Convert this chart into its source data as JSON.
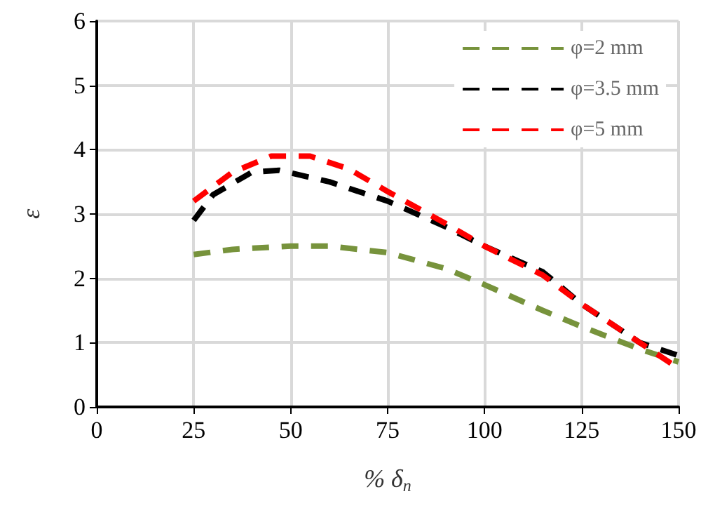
{
  "chart_data": {
    "type": "line",
    "xlabel": "% δ$_{n}$",
    "ylabel": "ε",
    "xlim": [
      0,
      150
    ],
    "xticks": [
      0,
      25,
      50,
      75,
      100,
      125,
      150
    ],
    "ylim": [
      0,
      6
    ],
    "yticks": [
      0,
      1,
      2,
      3,
      4,
      5,
      6
    ],
    "grid": true,
    "legend": "top right",
    "marker": "none",
    "line_style": "dashed",
    "series": [
      {
        "name": "φ=2 mm",
        "color": "#77933c",
        "x": [
          25,
          35,
          50,
          60,
          75,
          90,
          100,
          115,
          125,
          140,
          150
        ],
        "values": [
          2.37,
          2.45,
          2.5,
          2.5,
          2.4,
          2.15,
          1.9,
          1.5,
          1.25,
          0.9,
          0.7
        ]
      },
      {
        "name": "φ=3.5 mm",
        "color": "#000000",
        "x": [
          25,
          30,
          40,
          47,
          60,
          75,
          90,
          100,
          115,
          125,
          140,
          150
        ],
        "values": [
          2.9,
          3.3,
          3.65,
          3.68,
          3.5,
          3.2,
          2.8,
          2.5,
          2.1,
          1.6,
          1.0,
          0.8
        ]
      },
      {
        "name": "φ=5 mm",
        "color": "#ff0000",
        "x": [
          25,
          35,
          45,
          55,
          65,
          75,
          90,
          100,
          115,
          125,
          140,
          150
        ],
        "values": [
          3.2,
          3.65,
          3.9,
          3.9,
          3.7,
          3.35,
          2.85,
          2.5,
          2.05,
          1.6,
          1.0,
          0.6
        ]
      }
    ]
  }
}
